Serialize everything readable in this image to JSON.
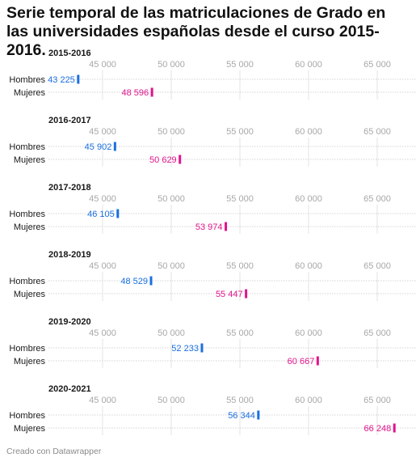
{
  "title": "Serie temporal de las matriculaciones de Grado en las universidades españolas desde el curso 2015-2016.",
  "footer": "Creado con Datawrapper",
  "chart_data": {
    "type": "bar",
    "orientation": "horizontal",
    "x_ticks": [
      45000,
      50000,
      55000,
      60000,
      65000
    ],
    "x_tick_labels": [
      "45 000",
      "50 000",
      "55 000",
      "60 000",
      "65 000"
    ],
    "xlim": [
      40000,
      67500
    ],
    "grid": true,
    "categories": [
      "Hombres",
      "Mujeres"
    ],
    "colors": {
      "Hombres": "#1a6fe0",
      "Mujeres": "#e0148c"
    },
    "panels": [
      {
        "title": "2015-2016",
        "values": [
          43225,
          48596
        ],
        "labels": [
          "43 225",
          "48 596"
        ]
      },
      {
        "title": "2016-2017",
        "values": [
          45902,
          50629
        ],
        "labels": [
          "45 902",
          "50 629"
        ]
      },
      {
        "title": "2017-2018",
        "values": [
          46105,
          53974
        ],
        "labels": [
          "46 105",
          "53 974"
        ]
      },
      {
        "title": "2018-2019",
        "values": [
          48529,
          55447
        ],
        "labels": [
          "48 529",
          "55 447"
        ]
      },
      {
        "title": "2019-2020",
        "values": [
          52233,
          60667
        ],
        "labels": [
          "52 233",
          "60 667"
        ]
      },
      {
        "title": "2020-2021",
        "values": [
          56344,
          66248
        ],
        "labels": [
          "56 344",
          "66 248"
        ]
      }
    ]
  }
}
